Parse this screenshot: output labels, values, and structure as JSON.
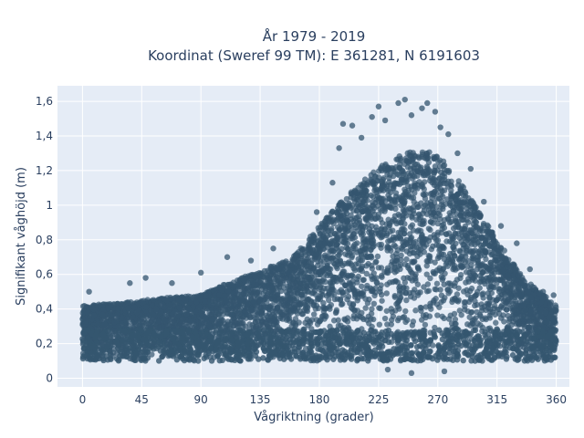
{
  "chart_data": {
    "type": "scatter",
    "title_lines": [
      "År 1979 - 2019",
      "Koordinat (Sweref 99 TM): E 361281, N 6191603"
    ],
    "xlabel": "Vågriktning (grader)",
    "ylabel": "Signifikant våghöjd (m)",
    "xlim": [
      -19,
      370
    ],
    "ylim": [
      -0.05,
      1.69
    ],
    "xticks": [
      0,
      45,
      90,
      135,
      180,
      225,
      270,
      315,
      360
    ],
    "xtick_labels": [
      "0",
      "45",
      "90",
      "135",
      "180",
      "225",
      "270",
      "315",
      "360"
    ],
    "yticks": [
      0,
      0.2,
      0.4,
      0.6,
      0.8,
      1.0,
      1.2,
      1.4,
      1.6
    ],
    "ytick_labels": [
      "0",
      "0,2",
      "0,4",
      "0,6",
      "0,8",
      "1",
      "1,2",
      "1,4",
      "1,6"
    ],
    "grid": true,
    "colors": {
      "plot_bg": "#e5ecf6",
      "grid": "#ffffff",
      "marker": "#34566f",
      "text": "#2a3f5f"
    },
    "upper_envelope": {
      "x": [
        0,
        20,
        45,
        70,
        90,
        110,
        135,
        160,
        180,
        200,
        225,
        250,
        270,
        290,
        315,
        335,
        360
      ],
      "y": [
        0.42,
        0.43,
        0.45,
        0.47,
        0.48,
        0.55,
        0.62,
        0.7,
        0.88,
        1.05,
        1.22,
        1.32,
        1.3,
        1.1,
        0.8,
        0.58,
        0.42
      ]
    },
    "lower_bound": 0.1,
    "points": [
      {
        "x": 5,
        "y": 0.5
      },
      {
        "x": 36,
        "y": 0.55
      },
      {
        "x": 48,
        "y": 0.58
      },
      {
        "x": 68,
        "y": 0.55
      },
      {
        "x": 90,
        "y": 0.61
      },
      {
        "x": 110,
        "y": 0.7
      },
      {
        "x": 128,
        "y": 0.68
      },
      {
        "x": 145,
        "y": 0.75
      },
      {
        "x": 178,
        "y": 0.96
      },
      {
        "x": 190,
        "y": 1.13
      },
      {
        "x": 195,
        "y": 1.33
      },
      {
        "x": 198,
        "y": 1.47
      },
      {
        "x": 205,
        "y": 1.46
      },
      {
        "x": 212,
        "y": 1.39
      },
      {
        "x": 220,
        "y": 1.51
      },
      {
        "x": 225,
        "y": 1.57
      },
      {
        "x": 230,
        "y": 1.49
      },
      {
        "x": 240,
        "y": 1.59
      },
      {
        "x": 245,
        "y": 1.61
      },
      {
        "x": 250,
        "y": 1.52
      },
      {
        "x": 258,
        "y": 1.56
      },
      {
        "x": 262,
        "y": 1.59
      },
      {
        "x": 268,
        "y": 1.54
      },
      {
        "x": 272,
        "y": 1.45
      },
      {
        "x": 278,
        "y": 1.41
      },
      {
        "x": 285,
        "y": 1.3
      },
      {
        "x": 295,
        "y": 1.21
      },
      {
        "x": 305,
        "y": 1.02
      },
      {
        "x": 318,
        "y": 0.88
      },
      {
        "x": 330,
        "y": 0.78
      },
      {
        "x": 340,
        "y": 0.63
      },
      {
        "x": 350,
        "y": 0.5
      },
      {
        "x": 358,
        "y": 0.48
      },
      {
        "x": 232,
        "y": 0.05
      },
      {
        "x": 250,
        "y": 0.03
      },
      {
        "x": 275,
        "y": 0.04
      }
    ]
  }
}
